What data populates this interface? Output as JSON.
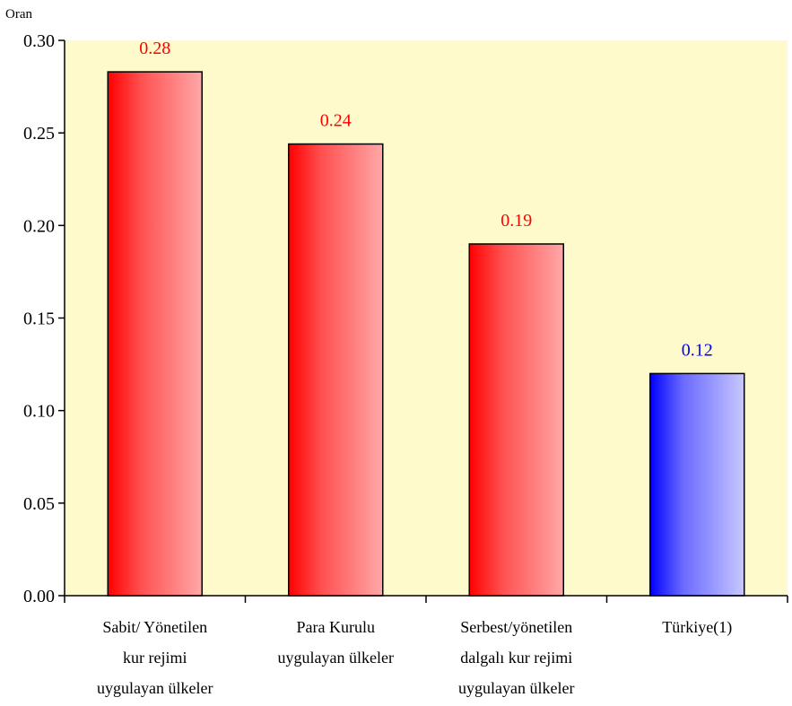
{
  "chart_data": {
    "type": "bar",
    "ylabel": "Oran",
    "ylim": [
      0,
      0.3
    ],
    "yticks": [
      "0.00",
      "0.05",
      "0.10",
      "0.15",
      "0.20",
      "0.25",
      "0.30"
    ],
    "categories": [
      [
        "Sabit/ Yönetilen",
        "kur rejimi",
        "uygulayan ülkeler"
      ],
      [
        "Para Kurulu",
        "uygulayan ülkeler"
      ],
      [
        "Serbest/yönetilen",
        "dalgalı kur rejimi",
        "uygulayan ülkeler"
      ],
      [
        "Türkiye(1)"
      ]
    ],
    "values": [
      0.283,
      0.244,
      0.19,
      0.12
    ],
    "data_labels": [
      "0.28",
      "0.24",
      "0.19",
      "0.12"
    ],
    "bar_colors": [
      "#ff0000",
      "#ff0000",
      "#ff0000",
      "#0000ff"
    ],
    "label_colors": [
      "#ff0000",
      "#ff0000",
      "#ff0000",
      "#0000ff"
    ],
    "plot_background": "#fffacc",
    "grid": false
  }
}
